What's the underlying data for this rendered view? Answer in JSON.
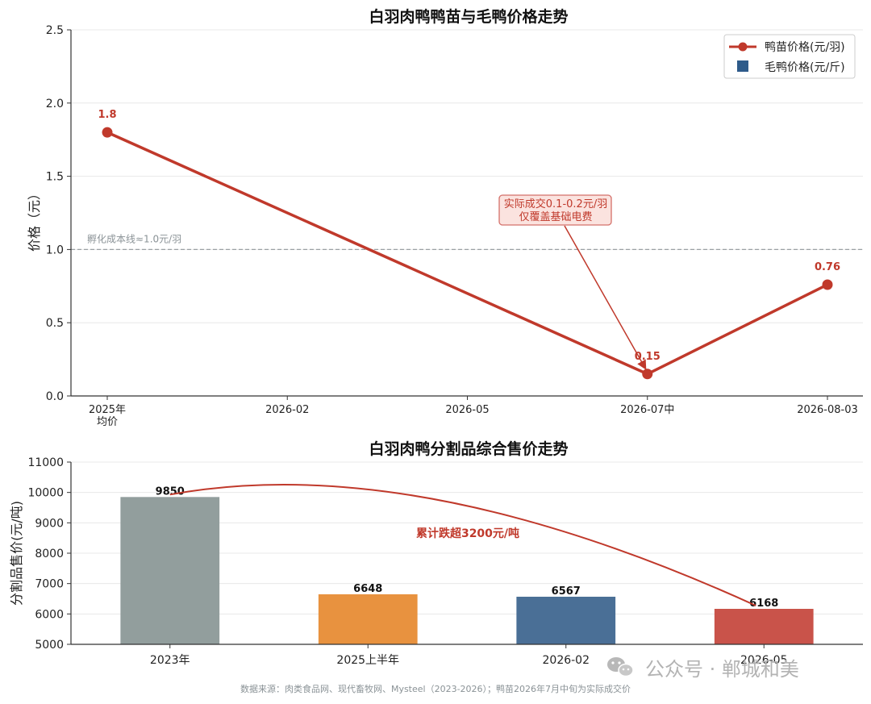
{
  "chart_data": [
    {
      "type": "line",
      "title": "白羽肉鸭鸭苗与毛鸭价格走势",
      "xlabel": "",
      "ylabel": "价格（元）",
      "x_tick_labels": [
        [
          "2025年",
          "均价"
        ],
        [
          "2026-02"
        ],
        [
          "2026-05"
        ],
        [
          "2026-07中"
        ],
        [
          "2026-08-03"
        ]
      ],
      "ylim": [
        0,
        2.5
      ],
      "y_ticks": [
        0.0,
        0.5,
        1.0,
        1.5,
        2.0,
        2.5
      ],
      "grid": true,
      "legend": {
        "placement": "top-right",
        "entries": [
          {
            "label": "鸭苗价格(元/羽)",
            "marker": "line-circle",
            "color": "#c0392b"
          },
          {
            "label": "毛鸭价格(元/斤)",
            "marker": "square",
            "color": "#2e5b8a"
          }
        ]
      },
      "series": [
        {
          "name": "鸭苗价格(元/羽)",
          "color": "#c0392b",
          "points": [
            {
              "x_index": 0,
              "y": 1.8,
              "label": "1.8"
            },
            {
              "x_index": 3,
              "y": 0.15,
              "label": "0.15"
            },
            {
              "x_index": 4,
              "y": 0.76,
              "label": "0.76"
            }
          ]
        }
      ],
      "reference_line": {
        "y": 1.0,
        "label": "孵化成本线≈1.0元/羽",
        "color": "#9aa0a4"
      },
      "annotation": {
        "lines": [
          "实际成交0.1-0.2元/羽",
          "仅覆盖基础电费"
        ],
        "target_x_index": 3,
        "target_y": 0.15
      }
    },
    {
      "type": "bar",
      "title": "白羽肉鸭分割品综合售价走势",
      "xlabel": "",
      "ylabel": "分割品售价(元/吨)",
      "categories": [
        "2023年",
        "2025上半年",
        "2026-02",
        "2026-05"
      ],
      "values": [
        9850,
        6648,
        6567,
        6168
      ],
      "colors": [
        "#929e9d",
        "#e8923f",
        "#4a6f96",
        "#c9534a"
      ],
      "ylim": [
        5000,
        11000
      ],
      "y_ticks": [
        5000,
        6000,
        7000,
        8000,
        9000,
        10000,
        11000
      ],
      "grid": true,
      "annotation": {
        "text": "累计跌超3200元/吨",
        "from_index": 0,
        "to_index": 3,
        "color": "#c0392b"
      }
    }
  ],
  "footer": {
    "source": "数据来源：肉类食品网、现代畜牧网、Mysteel（2023-2026）；鸭苗2026年7月中旬为实际成交价",
    "watermark": "公众号 · 郸城和美"
  }
}
